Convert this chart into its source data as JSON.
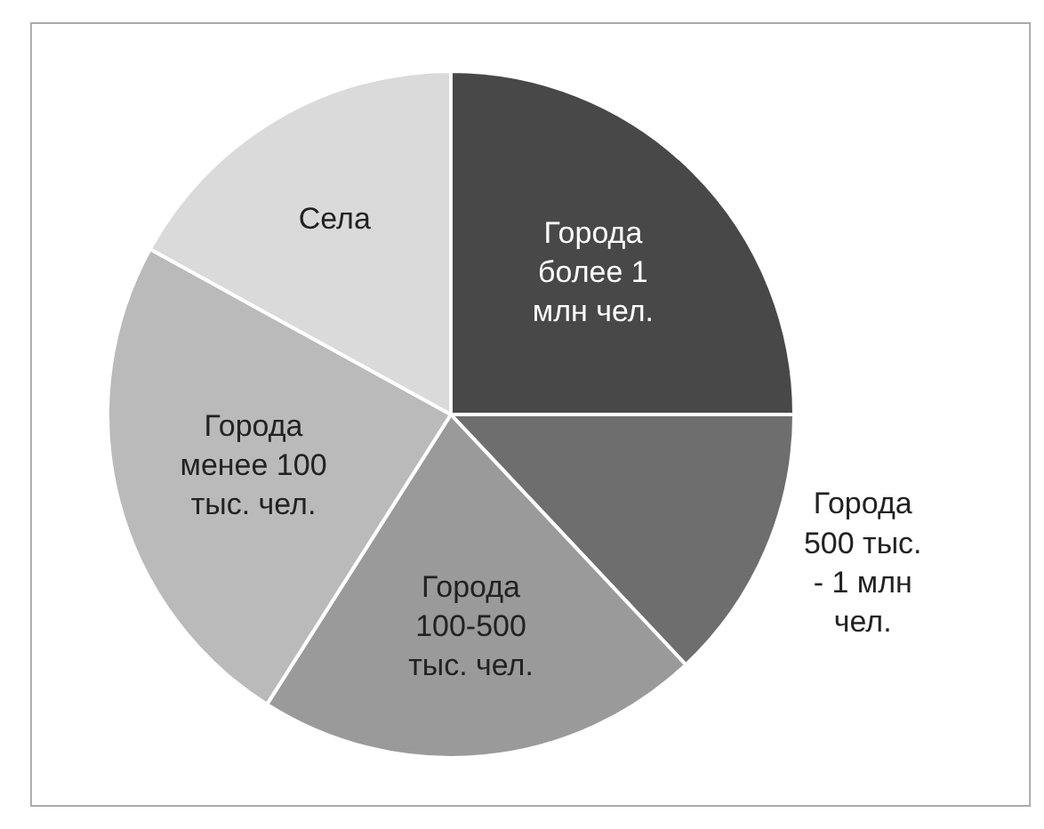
{
  "chart_data": {
    "type": "pie",
    "categories": [
      "Города более 1 млн чел.",
      "Города 500 тыс. - 1 млн чел.",
      "Города 100-500 тыс. чел.",
      "Города менее 100 тыс. чел.",
      "Села"
    ],
    "values": [
      25,
      13,
      21,
      24,
      17
    ],
    "colors": [
      "#484848",
      "#6e6e6e",
      "#9a9a9a",
      "#bababa",
      "#dadada"
    ],
    "legend": false
  }
}
